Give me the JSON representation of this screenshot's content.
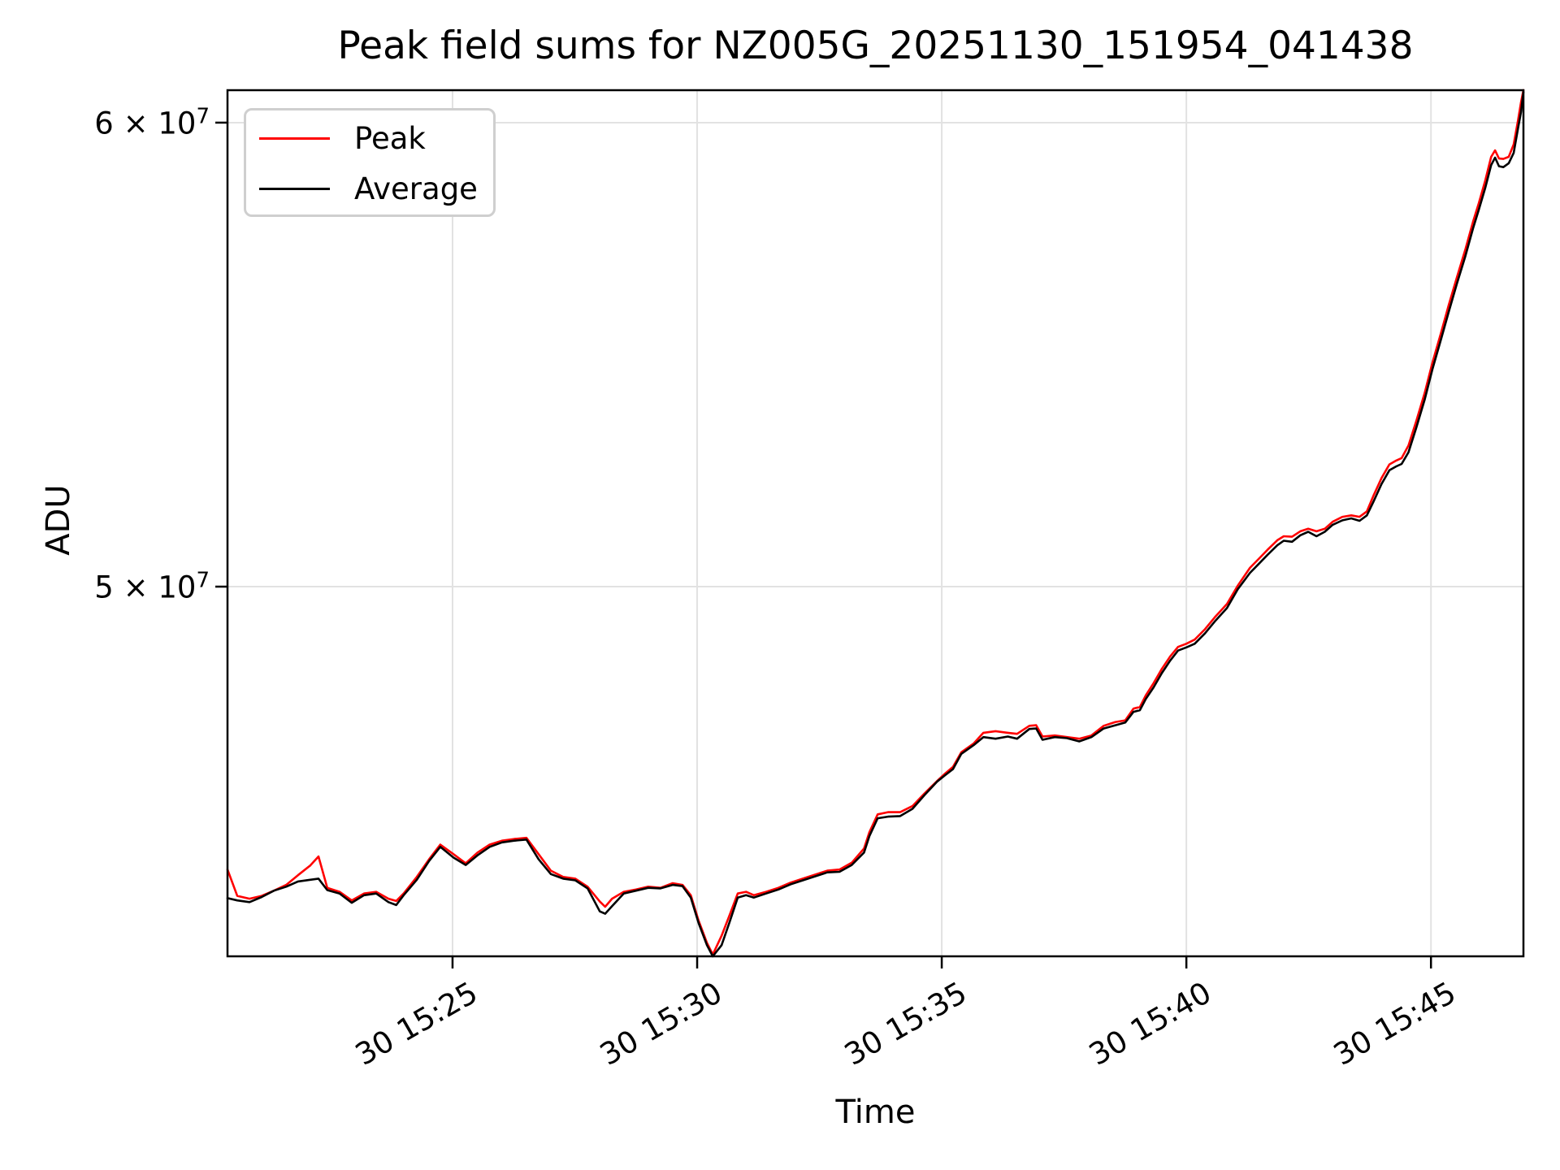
{
  "chart_data": {
    "type": "line",
    "title": "Peak field sums for NZ005G_20251130_151954_041438",
    "xlabel": "Time",
    "ylabel": "ADU",
    "legend": {
      "position": "upper left",
      "entries": [
        "Peak",
        "Average"
      ]
    },
    "grid": {
      "visible": true,
      "color": "#e2e2e2"
    },
    "x_axis": {
      "unit": "minutes after 15:00 (day 30)",
      "domain": [
        20.4,
        46.89
      ],
      "ticks": [
        {
          "minute": 25,
          "label": "30 15:25"
        },
        {
          "minute": 30,
          "label": "30 15:30"
        },
        {
          "minute": 35,
          "label": "30 15:35"
        },
        {
          "minute": 40,
          "label": "30 15:40"
        },
        {
          "minute": 45,
          "label": "30 15:45"
        }
      ]
    },
    "y_axis": {
      "scale": "log",
      "unit": "ADU",
      "value_scale": 10000000,
      "domain_e7": [
        4.324,
        6.077
      ],
      "ticks": [
        {
          "value_e7": 5.0,
          "label_base": "5 × 10",
          "label_exp": "7"
        },
        {
          "value_e7": 6.0,
          "label_base": "6 × 10",
          "label_exp": "7"
        }
      ]
    },
    "x_minutes": [
      20.4,
      20.6,
      20.85,
      21.1,
      21.35,
      21.6,
      21.84,
      22.09,
      22.26,
      22.44,
      22.69,
      22.94,
      23.19,
      23.44,
      23.69,
      23.85,
      24.0,
      24.27,
      24.52,
      24.75,
      25.02,
      25.27,
      25.51,
      25.76,
      26.01,
      26.26,
      26.51,
      26.76,
      27.01,
      27.26,
      27.51,
      27.76,
      28.01,
      28.12,
      28.26,
      28.5,
      28.75,
      29.0,
      29.25,
      29.5,
      29.7,
      29.87,
      30.03,
      30.2,
      30.32,
      30.5,
      30.66,
      30.83,
      31.0,
      31.16,
      31.41,
      31.66,
      31.91,
      32.16,
      32.41,
      32.66,
      32.91,
      33.16,
      33.41,
      33.52,
      33.69,
      33.9,
      34.15,
      34.4,
      34.65,
      34.9,
      35.07,
      35.23,
      35.4,
      35.65,
      35.85,
      36.1,
      36.35,
      36.54,
      36.79,
      36.93,
      37.06,
      37.31,
      37.56,
      37.81,
      38.06,
      38.31,
      38.55,
      38.75,
      38.92,
      39.05,
      39.17,
      39.33,
      39.5,
      39.67,
      39.83,
      40.0,
      40.17,
      40.38,
      40.58,
      40.83,
      41.05,
      41.3,
      41.46,
      41.66,
      41.86,
      41.99,
      42.16,
      42.33,
      42.49,
      42.66,
      42.83,
      42.99,
      43.19,
      43.37,
      43.54,
      43.69,
      43.82,
      43.99,
      44.15,
      44.29,
      44.4,
      44.54,
      44.7,
      44.87,
      45.03,
      45.2,
      45.36,
      45.53,
      45.7,
      45.86,
      45.98,
      46.11,
      46.23,
      46.31,
      46.39,
      46.48,
      46.59,
      46.69,
      46.78,
      46.84,
      46.89
    ],
    "series": [
      {
        "name": "Peak",
        "color": "#ff0000",
        "values_e7": [
          4.474,
          4.428,
          4.423,
          4.428,
          4.437,
          4.447,
          4.464,
          4.481,
          4.497,
          4.442,
          4.435,
          4.42,
          4.432,
          4.435,
          4.423,
          4.419,
          4.432,
          4.461,
          4.492,
          4.518,
          4.501,
          4.485,
          4.504,
          4.518,
          4.525,
          4.528,
          4.53,
          4.501,
          4.472,
          4.461,
          4.458,
          4.444,
          4.418,
          4.409,
          4.423,
          4.435,
          4.439,
          4.444,
          4.442,
          4.45,
          4.447,
          4.429,
          4.385,
          4.347,
          4.327,
          4.359,
          4.394,
          4.432,
          4.435,
          4.429,
          4.435,
          4.442,
          4.451,
          4.458,
          4.465,
          4.472,
          4.474,
          4.486,
          4.511,
          4.54,
          4.572,
          4.576,
          4.576,
          4.587,
          4.61,
          4.632,
          4.646,
          4.658,
          4.685,
          4.701,
          4.721,
          4.724,
          4.721,
          4.719,
          4.734,
          4.735,
          4.714,
          4.716,
          4.713,
          4.71,
          4.716,
          4.734,
          4.741,
          4.744,
          4.766,
          4.769,
          4.791,
          4.814,
          4.841,
          4.865,
          4.883,
          4.889,
          4.897,
          4.917,
          4.94,
          4.966,
          5.002,
          5.037,
          5.053,
          5.073,
          5.092,
          5.1,
          5.099,
          5.11,
          5.115,
          5.11,
          5.115,
          5.129,
          5.139,
          5.142,
          5.139,
          5.15,
          5.181,
          5.218,
          5.246,
          5.254,
          5.259,
          5.285,
          5.336,
          5.395,
          5.46,
          5.522,
          5.584,
          5.646,
          5.707,
          5.771,
          5.814,
          5.865,
          5.92,
          5.935,
          5.916,
          5.915,
          5.92,
          5.949,
          6.006,
          6.048,
          6.077
        ]
      },
      {
        "name": "Average",
        "color": "#000000",
        "values_e7": [
          4.424,
          4.42,
          4.417,
          4.426,
          4.437,
          4.444,
          4.453,
          4.456,
          4.458,
          4.438,
          4.432,
          4.416,
          4.429,
          4.432,
          4.417,
          4.412,
          4.429,
          4.456,
          4.489,
          4.514,
          4.495,
          4.482,
          4.499,
          4.514,
          4.522,
          4.525,
          4.527,
          4.492,
          4.466,
          4.458,
          4.455,
          4.441,
          4.401,
          4.397,
          4.41,
          4.432,
          4.437,
          4.442,
          4.441,
          4.447,
          4.445,
          4.425,
          4.381,
          4.343,
          4.324,
          4.343,
          4.382,
          4.425,
          4.429,
          4.425,
          4.432,
          4.439,
          4.448,
          4.455,
          4.462,
          4.469,
          4.47,
          4.482,
          4.504,
          4.533,
          4.565,
          4.568,
          4.569,
          4.582,
          4.607,
          4.631,
          4.643,
          4.654,
          4.682,
          4.698,
          4.713,
          4.71,
          4.714,
          4.71,
          4.728,
          4.729,
          4.708,
          4.713,
          4.711,
          4.705,
          4.713,
          4.729,
          4.735,
          4.74,
          4.76,
          4.763,
          4.784,
          4.806,
          4.833,
          4.857,
          4.876,
          4.882,
          4.889,
          4.909,
          4.932,
          4.958,
          4.995,
          5.027,
          5.043,
          5.063,
          5.082,
          5.091,
          5.089,
          5.102,
          5.109,
          5.1,
          5.109,
          5.123,
          5.132,
          5.136,
          5.131,
          5.142,
          5.169,
          5.206,
          5.234,
          5.242,
          5.247,
          5.271,
          5.322,
          5.381,
          5.446,
          5.508,
          5.569,
          5.632,
          5.692,
          5.756,
          5.799,
          5.848,
          5.901,
          5.918,
          5.898,
          5.896,
          5.905,
          5.929,
          5.987,
          6.025,
          6.073
        ]
      }
    ]
  }
}
